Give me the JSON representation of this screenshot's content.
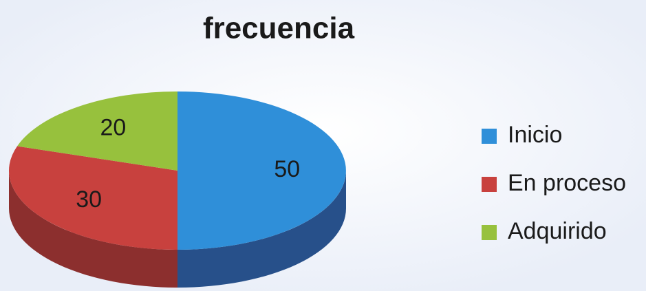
{
  "chart_data": {
    "type": "pie",
    "title": "frecuencia",
    "categories": [
      "Inicio",
      "En proceso",
      "Adquirido"
    ],
    "values": [
      50,
      30,
      20
    ],
    "colors": [
      "#2f8fd9",
      "#c8413e",
      "#97c13d"
    ],
    "side_colors": [
      "#27508a",
      "#8c2f2e",
      "#5f7d26"
    ],
    "legend": "right"
  }
}
